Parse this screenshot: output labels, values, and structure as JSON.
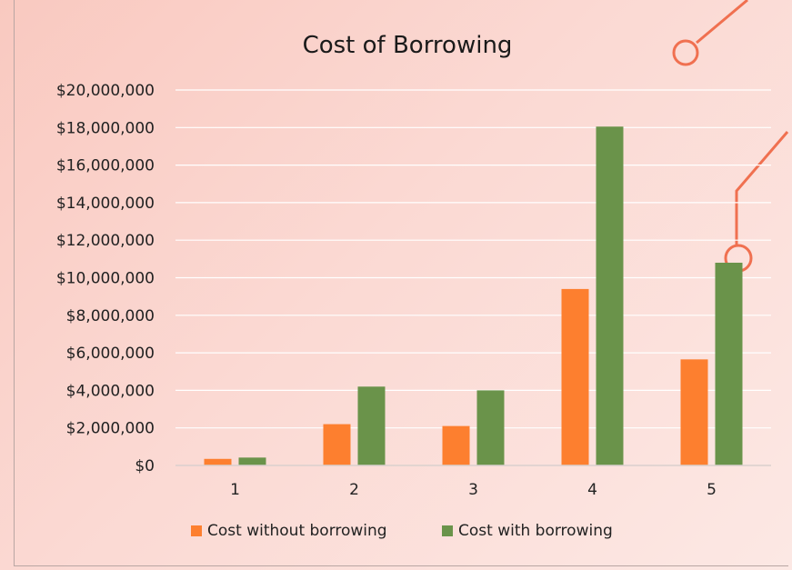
{
  "chart_data": {
    "type": "bar",
    "title": "Cost of Borrowing",
    "xlabel": "",
    "ylabel": "",
    "categories": [
      "1",
      "2",
      "3",
      "4",
      "5"
    ],
    "series": [
      {
        "name": "Cost without borrowing",
        "values": [
          350000,
          2200000,
          2100000,
          9400000,
          5650000
        ]
      },
      {
        "name": "Cost with borrowing",
        "values": [
          420000,
          4200000,
          4000000,
          18050000,
          10800000
        ]
      }
    ],
    "ylim": [
      0,
      20000000
    ],
    "yticks": [
      0,
      2000000,
      4000000,
      6000000,
      8000000,
      10000000,
      12000000,
      14000000,
      16000000,
      18000000,
      20000000
    ],
    "ytick_labels": [
      "$0",
      "$2,000,000",
      "$4,000,000",
      "$6,000,000",
      "$8,000,000",
      "$10,000,000",
      "$12,000,000",
      "$14,000,000",
      "$16,000,000",
      "$18,000,000",
      "$20,000,000"
    ],
    "grid": true,
    "legend_position": "bottom",
    "colors": {
      "Cost without borrowing": "#fd7f2f",
      "Cost with borrowing": "#6a934a",
      "gridline": "#ffffff",
      "decoration": "#f07050"
    }
  }
}
